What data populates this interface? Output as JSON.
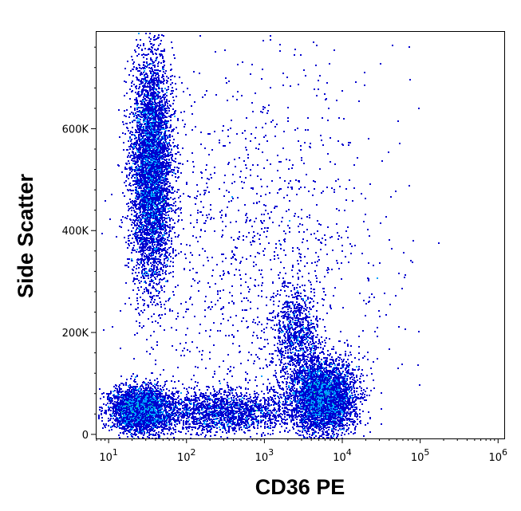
{
  "chart_data": {
    "type": "scatter",
    "subtype": "flow-cytometry-density-dot-plot",
    "xlabel": "CD36 PE",
    "ylabel": "Side Scatter",
    "x_scale": "log",
    "xlim": [
      7,
      1200000
    ],
    "ylim": [
      -8000,
      790000
    ],
    "x_ticks": [
      {
        "value": 10,
        "base": "10",
        "exp": "1"
      },
      {
        "value": 100,
        "base": "10",
        "exp": "2"
      },
      {
        "value": 1000,
        "base": "10",
        "exp": "3"
      },
      {
        "value": 10000,
        "base": "10",
        "exp": "4"
      },
      {
        "value": 100000,
        "base": "10",
        "exp": "5"
      },
      {
        "value": 1000000,
        "base": "10",
        "exp": "6"
      }
    ],
    "y_ticks": [
      {
        "value": 0,
        "label": "0"
      },
      {
        "value": 200000,
        "label": "200K"
      },
      {
        "value": 400000,
        "label": "400K"
      },
      {
        "value": 600000,
        "label": "600K"
      }
    ],
    "grid": false,
    "color_scale": [
      "#0000d0",
      "#00a0ff",
      "#00e0a0",
      "#a0f000",
      "#ffe000",
      "#ff6000",
      "#d00000"
    ],
    "populations": [
      {
        "x_center": 35,
        "x_log_spread": 0.13,
        "y_center": 520000,
        "y_spread": 110000,
        "n": 5200
      },
      {
        "x_center": 25,
        "x_log_spread": 0.2,
        "y_center": 50000,
        "y_spread": 22000,
        "n": 3200
      },
      {
        "x_center": 5500,
        "x_log_spread": 0.2,
        "y_center": 75000,
        "y_spread": 35000,
        "n": 4200
      },
      {
        "x_center": 2500,
        "x_log_spread": 0.15,
        "y_center": 190000,
        "y_spread": 50000,
        "n": 900
      },
      {
        "x_center": 300,
        "x_log_spread": 0.45,
        "y_center": 45000,
        "y_spread": 22000,
        "n": 1800
      },
      {
        "x_center": 800,
        "x_log_spread": 0.8,
        "y_center": 350000,
        "y_spread": 200000,
        "n": 1300
      }
    ]
  }
}
